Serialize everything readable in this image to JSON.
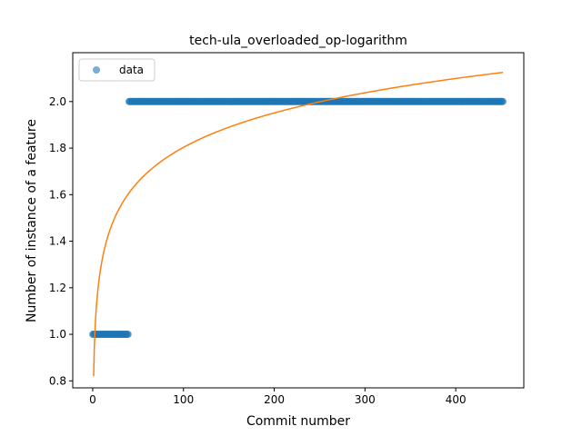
{
  "chart_data": {
    "type": "scatter",
    "title": "tech-ula_overloaded_op-logarithm",
    "xlabel": "Commit number",
    "ylabel": "Number of instance of a feature",
    "xlim": [
      -22,
      475
    ],
    "ylim": [
      0.77,
      2.21
    ],
    "xticks": [
      0,
      100,
      200,
      300,
      400
    ],
    "yticks": [
      0.8,
      1.0,
      1.2,
      1.4,
      1.6,
      1.8,
      2.0
    ],
    "xtick_labels": [
      "0",
      "100",
      "200",
      "300",
      "400"
    ],
    "ytick_labels": [
      "0.8",
      "1.0",
      "1.2",
      "1.4",
      "1.6",
      "1.8",
      "2.0"
    ],
    "grid": false,
    "legend": {
      "position": "top-left",
      "entries": [
        "data"
      ]
    },
    "series": [
      {
        "name": "data",
        "kind": "points",
        "color": "#1f77b4",
        "segments": [
          {
            "x_start": 0,
            "x_end": 39,
            "y": 1.0
          },
          {
            "x_start": 40,
            "x_end": 452,
            "y": 2.0
          }
        ]
      },
      {
        "kind": "line",
        "color": "#ff7f0e",
        "model": "logarithmic",
        "a": 0.82,
        "b": 0.2135,
        "x_start": 1,
        "x_end": 452
      }
    ]
  }
}
